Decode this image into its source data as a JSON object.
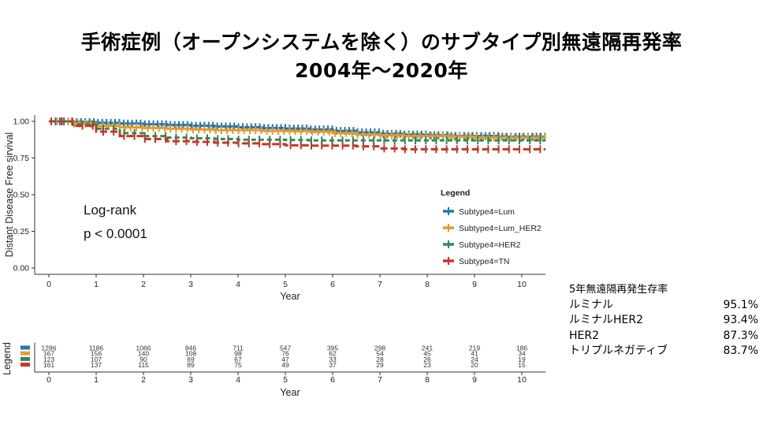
{
  "title_line1": "手術症例（オープンシステムを除く）のサブタイプ別無遠隔再発率",
  "title_line2": "2004年～2020年",
  "survival_summary": {
    "header": "5年無遠隔再発生存率",
    "rows": [
      {
        "label": "ルミナル",
        "value": "95.1%"
      },
      {
        "label": "ルミナルHER2",
        "value": "93.4%"
      },
      {
        "label": "HER2",
        "value": "87.3%"
      },
      {
        "label": "トリプルネガティブ",
        "value": "83.7%"
      }
    ]
  },
  "chart_data": {
    "type": "line",
    "ylabel": "Distant Disease Free sirvival",
    "xlabel": "Year",
    "xlim": [
      -0.3,
      10.5
    ],
    "ylim": [
      0,
      1.0
    ],
    "x_ticks": [
      0,
      1,
      2,
      3,
      4,
      5,
      6,
      7,
      8,
      9,
      10
    ],
    "y_ticks": [
      "0.00",
      "0.25",
      "0.50",
      "0.75",
      "1.00"
    ],
    "y_tick_values": [
      0,
      0.25,
      0.5,
      0.75,
      1.0
    ],
    "legend_title": "Legend",
    "legend_position": "right",
    "annotation": [
      "Log-rank",
      "p < 0.0001"
    ],
    "series": [
      {
        "name": "Subtype4=Lum",
        "color": "#1f77b4",
        "x": [
          0,
          0.5,
          1,
          1.5,
          2,
          2.5,
          3,
          3.5,
          4,
          4.5,
          5,
          5.5,
          6,
          6.5,
          7,
          7.5,
          8,
          8.5,
          9,
          9.5,
          10,
          10.5
        ],
        "y": [
          1.0,
          0.995,
          0.99,
          0.985,
          0.98,
          0.975,
          0.97,
          0.965,
          0.96,
          0.955,
          0.951,
          0.945,
          0.935,
          0.925,
          0.915,
          0.91,
          0.905,
          0.9,
          0.9,
          0.895,
          0.895,
          0.895
        ]
      },
      {
        "name": "Subtype4=Lum_HER2",
        "color": "#e69a2e",
        "x": [
          0,
          0.5,
          1,
          1.5,
          2,
          2.5,
          3,
          3.5,
          4,
          4.5,
          5,
          5.5,
          6,
          6.5,
          7,
          7.5,
          8,
          8.5,
          9,
          9.5,
          10,
          10.5
        ],
        "y": [
          1.0,
          0.985,
          0.97,
          0.96,
          0.955,
          0.95,
          0.945,
          0.94,
          0.94,
          0.935,
          0.934,
          0.93,
          0.92,
          0.91,
          0.905,
          0.9,
          0.9,
          0.895,
          0.89,
          0.89,
          0.89,
          0.89
        ]
      },
      {
        "name": "Subtype4=HER2",
        "color": "#2e8b57",
        "x": [
          0,
          0.5,
          1,
          1.5,
          2,
          2.5,
          3,
          3.5,
          4,
          4.5,
          5,
          5.5,
          6,
          6.5,
          7,
          7.5,
          8,
          8.5,
          9,
          9.5,
          10,
          10.5
        ],
        "y": [
          1.0,
          0.98,
          0.95,
          0.92,
          0.9,
          0.89,
          0.885,
          0.88,
          0.875,
          0.875,
          0.873,
          0.87,
          0.87,
          0.87,
          0.87,
          0.87,
          0.87,
          0.87,
          0.87,
          0.87,
          0.87,
          0.87
        ]
      },
      {
        "name": "Subtype4=TN",
        "color": "#c0392b",
        "x": [
          0,
          0.5,
          1,
          1.5,
          2,
          2.5,
          3,
          3.5,
          4,
          4.5,
          5,
          5.5,
          6,
          6.5,
          7,
          7.5,
          8,
          8.5,
          9,
          9.5,
          10,
          10.5
        ],
        "y": [
          1.0,
          0.97,
          0.93,
          0.9,
          0.88,
          0.865,
          0.86,
          0.855,
          0.85,
          0.845,
          0.837,
          0.835,
          0.835,
          0.83,
          0.815,
          0.81,
          0.81,
          0.81,
          0.81,
          0.81,
          0.81,
          0.81
        ]
      }
    ],
    "risk_table": {
      "ylabel": "Legend",
      "xlabel": "Year",
      "counts": [
        [
          1286,
          1186,
          1066,
          846,
          711,
          547,
          395,
          298,
          241,
          219,
          186
        ],
        [
          167,
          156,
          140,
          108,
          98,
          76,
          62,
          54,
          45,
          41,
          34
        ],
        [
          123,
          107,
          90,
          69,
          67,
          47,
          33,
          28,
          26,
          24,
          19
        ],
        [
          161,
          137,
          115,
          89,
          75,
          49,
          37,
          29,
          23,
          20,
          15
        ]
      ]
    }
  }
}
